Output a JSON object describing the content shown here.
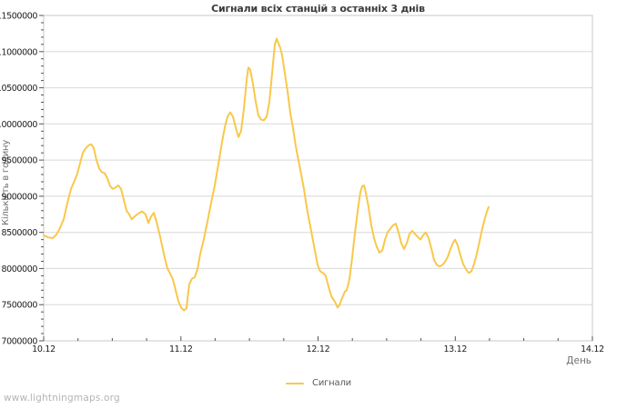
{
  "page": {
    "watermark": "www.lightningmaps.org"
  },
  "chart_data": {
    "type": "line",
    "title": "Сигнали всіх станцій з останніх 3 днів",
    "xlabel": "День",
    "ylabel": "Кількість в годину",
    "grid": "horizontal",
    "legend_position": "bottom-center",
    "x_ticks": [
      "10.12",
      "11.12",
      "12.12",
      "13.12",
      "14.12"
    ],
    "xlim_days": [
      0,
      4
    ],
    "ylim": [
      7000000,
      11500000
    ],
    "y_major_step": 500000,
    "y_minor_step": 100000,
    "x_minor_step_days": 0.25,
    "colors": {
      "line": "#f8c84a",
      "grid": "#d8d8d8",
      "border": "#c9c9c9",
      "tick": "#555555",
      "tick_label": "#1c1c1c"
    },
    "series": [
      {
        "name": "Сигнали",
        "color": "#f8c84a",
        "points": [
          [
            0.0,
            8460000
          ],
          [
            0.033,
            8430000
          ],
          [
            0.066,
            8420000
          ],
          [
            0.093,
            8470000
          ],
          [
            0.119,
            8560000
          ],
          [
            0.146,
            8680000
          ],
          [
            0.172,
            8900000
          ],
          [
            0.199,
            9100000
          ],
          [
            0.226,
            9220000
          ],
          [
            0.245,
            9310000
          ],
          [
            0.265,
            9450000
          ],
          [
            0.285,
            9600000
          ],
          [
            0.305,
            9660000
          ],
          [
            0.325,
            9700000
          ],
          [
            0.345,
            9720000
          ],
          [
            0.365,
            9670000
          ],
          [
            0.385,
            9500000
          ],
          [
            0.405,
            9380000
          ],
          [
            0.425,
            9330000
          ],
          [
            0.444,
            9320000
          ],
          [
            0.464,
            9250000
          ],
          [
            0.484,
            9140000
          ],
          [
            0.504,
            9100000
          ],
          [
            0.524,
            9120000
          ],
          [
            0.544,
            9150000
          ],
          [
            0.564,
            9100000
          ],
          [
            0.584,
            8950000
          ],
          [
            0.604,
            8800000
          ],
          [
            0.623,
            8750000
          ],
          [
            0.643,
            8680000
          ],
          [
            0.663,
            8720000
          ],
          [
            0.69,
            8760000
          ],
          [
            0.716,
            8790000
          ],
          [
            0.743,
            8750000
          ],
          [
            0.763,
            8630000
          ],
          [
            0.783,
            8720000
          ],
          [
            0.803,
            8770000
          ],
          [
            0.822,
            8650000
          ],
          [
            0.842,
            8500000
          ],
          [
            0.862,
            8330000
          ],
          [
            0.882,
            8150000
          ],
          [
            0.902,
            8000000
          ],
          [
            0.922,
            7930000
          ],
          [
            0.942,
            7850000
          ],
          [
            0.962,
            7700000
          ],
          [
            0.982,
            7550000
          ],
          [
            1.002,
            7460000
          ],
          [
            1.022,
            7420000
          ],
          [
            1.041,
            7450000
          ],
          [
            1.061,
            7780000
          ],
          [
            1.081,
            7860000
          ],
          [
            1.101,
            7880000
          ],
          [
            1.121,
            7990000
          ],
          [
            1.141,
            8200000
          ],
          [
            1.167,
            8400000
          ],
          [
            1.194,
            8650000
          ],
          [
            1.22,
            8900000
          ],
          [
            1.247,
            9150000
          ],
          [
            1.274,
            9450000
          ],
          [
            1.3,
            9750000
          ],
          [
            1.32,
            9950000
          ],
          [
            1.34,
            10100000
          ],
          [
            1.36,
            10160000
          ],
          [
            1.38,
            10100000
          ],
          [
            1.4,
            9950000
          ],
          [
            1.42,
            9820000
          ],
          [
            1.439,
            9900000
          ],
          [
            1.459,
            10200000
          ],
          [
            1.479,
            10600000
          ],
          [
            1.492,
            10780000
          ],
          [
            1.506,
            10750000
          ],
          [
            1.526,
            10550000
          ],
          [
            1.546,
            10300000
          ],
          [
            1.565,
            10120000
          ],
          [
            1.585,
            10060000
          ],
          [
            1.605,
            10050000
          ],
          [
            1.625,
            10100000
          ],
          [
            1.645,
            10300000
          ],
          [
            1.665,
            10700000
          ],
          [
            1.685,
            11100000
          ],
          [
            1.698,
            11180000
          ],
          [
            1.711,
            11120000
          ],
          [
            1.725,
            11050000
          ],
          [
            1.738,
            10950000
          ],
          [
            1.758,
            10700000
          ],
          [
            1.778,
            10450000
          ],
          [
            1.798,
            10150000
          ],
          [
            1.817,
            9950000
          ],
          [
            1.837,
            9700000
          ],
          [
            1.857,
            9500000
          ],
          [
            1.877,
            9300000
          ],
          [
            1.897,
            9100000
          ],
          [
            1.917,
            8850000
          ],
          [
            1.937,
            8650000
          ],
          [
            1.957,
            8450000
          ],
          [
            1.977,
            8250000
          ],
          [
            1.997,
            8050000
          ],
          [
            2.016,
            7960000
          ],
          [
            2.036,
            7940000
          ],
          [
            2.056,
            7900000
          ],
          [
            2.076,
            7750000
          ],
          [
            2.096,
            7620000
          ],
          [
            2.116,
            7560000
          ],
          [
            2.129,
            7520000
          ],
          [
            2.142,
            7460000
          ],
          [
            2.156,
            7490000
          ],
          [
            2.169,
            7560000
          ],
          [
            2.182,
            7620000
          ],
          [
            2.195,
            7680000
          ],
          [
            2.209,
            7700000
          ],
          [
            2.229,
            7850000
          ],
          [
            2.249,
            8150000
          ],
          [
            2.269,
            8500000
          ],
          [
            2.289,
            8800000
          ],
          [
            2.308,
            9050000
          ],
          [
            2.322,
            9140000
          ],
          [
            2.335,
            9150000
          ],
          [
            2.348,
            9050000
          ],
          [
            2.368,
            8850000
          ],
          [
            2.388,
            8600000
          ],
          [
            2.408,
            8420000
          ],
          [
            2.428,
            8300000
          ],
          [
            2.448,
            8220000
          ],
          [
            2.468,
            8250000
          ],
          [
            2.488,
            8400000
          ],
          [
            2.507,
            8500000
          ],
          [
            2.527,
            8550000
          ],
          [
            2.547,
            8600000
          ],
          [
            2.567,
            8620000
          ],
          [
            2.587,
            8500000
          ],
          [
            2.607,
            8350000
          ],
          [
            2.627,
            8270000
          ],
          [
            2.647,
            8350000
          ],
          [
            2.667,
            8480000
          ],
          [
            2.687,
            8520000
          ],
          [
            2.706,
            8480000
          ],
          [
            2.726,
            8440000
          ],
          [
            2.746,
            8400000
          ],
          [
            2.766,
            8460000
          ],
          [
            2.786,
            8500000
          ],
          [
            2.806,
            8420000
          ],
          [
            2.826,
            8280000
          ],
          [
            2.846,
            8120000
          ],
          [
            2.866,
            8050000
          ],
          [
            2.886,
            8030000
          ],
          [
            2.906,
            8050000
          ],
          [
            2.925,
            8090000
          ],
          [
            2.945,
            8160000
          ],
          [
            2.965,
            8270000
          ],
          [
            2.985,
            8360000
          ],
          [
            2.998,
            8400000
          ],
          [
            3.018,
            8320000
          ],
          [
            3.038,
            8180000
          ],
          [
            3.058,
            8060000
          ],
          [
            3.078,
            7990000
          ],
          [
            3.098,
            7940000
          ],
          [
            3.118,
            7960000
          ],
          [
            3.137,
            8060000
          ],
          [
            3.157,
            8200000
          ],
          [
            3.177,
            8370000
          ],
          [
            3.197,
            8550000
          ],
          [
            3.217,
            8700000
          ],
          [
            3.231,
            8790000
          ],
          [
            3.244,
            8850000
          ]
        ]
      }
    ]
  }
}
